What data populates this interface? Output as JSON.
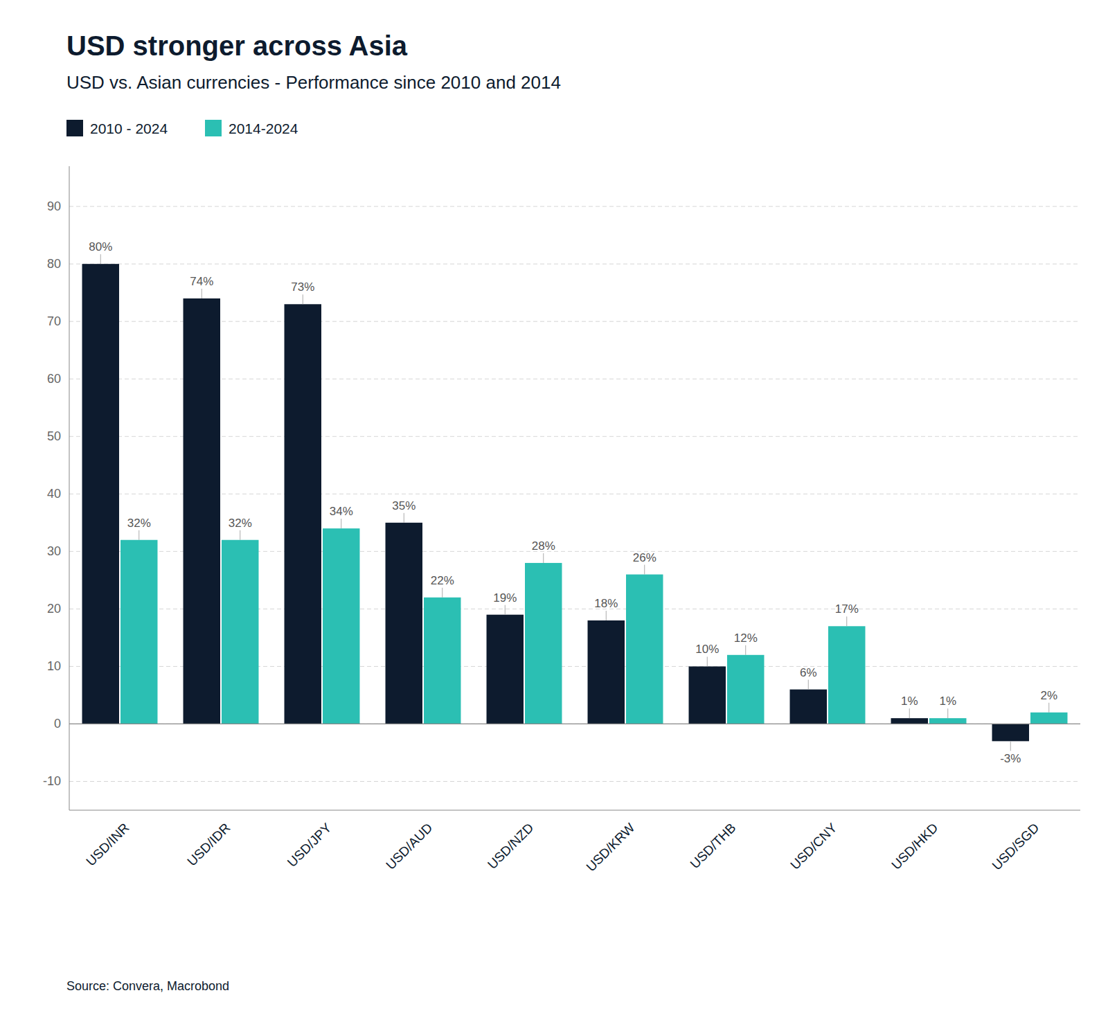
{
  "chart_data": {
    "type": "bar",
    "title": "USD stronger across Asia",
    "subtitle": "USD vs. Asian currencies - Performance since 2010 and 2014",
    "source": "Source: Convera, Macrobond",
    "categories": [
      "USD/INR",
      "USD/IDR",
      "USD/JPY",
      "USD/AUD",
      "USD/NZD",
      "USD/KRW",
      "USD/THB",
      "USD/CNY",
      "USD/HKD",
      "USD/SGD"
    ],
    "series": [
      {
        "name": "2010 - 2024",
        "color": "#0d1b2e",
        "values": [
          80,
          74,
          73,
          35,
          19,
          18,
          10,
          6,
          1,
          -3
        ],
        "value_labels": [
          "80%",
          "74%",
          "73%",
          "35%",
          "19%",
          "18%",
          "10%",
          "6%",
          "1%",
          "-3%"
        ]
      },
      {
        "name": "2014-2024",
        "color": "#2bbfb3",
        "values": [
          32,
          32,
          34,
          22,
          28,
          26,
          12,
          17,
          1,
          2
        ],
        "value_labels": [
          "32%",
          "32%",
          "34%",
          "22%",
          "28%",
          "26%",
          "12%",
          "17%",
          "1%",
          "2%"
        ]
      }
    ],
    "ylim": [
      -15,
      97
    ],
    "yticks": [
      -10,
      0,
      10,
      20,
      30,
      40,
      50,
      60,
      70,
      80,
      90
    ],
    "grid": true,
    "legend": "top left",
    "data_labels": true
  }
}
